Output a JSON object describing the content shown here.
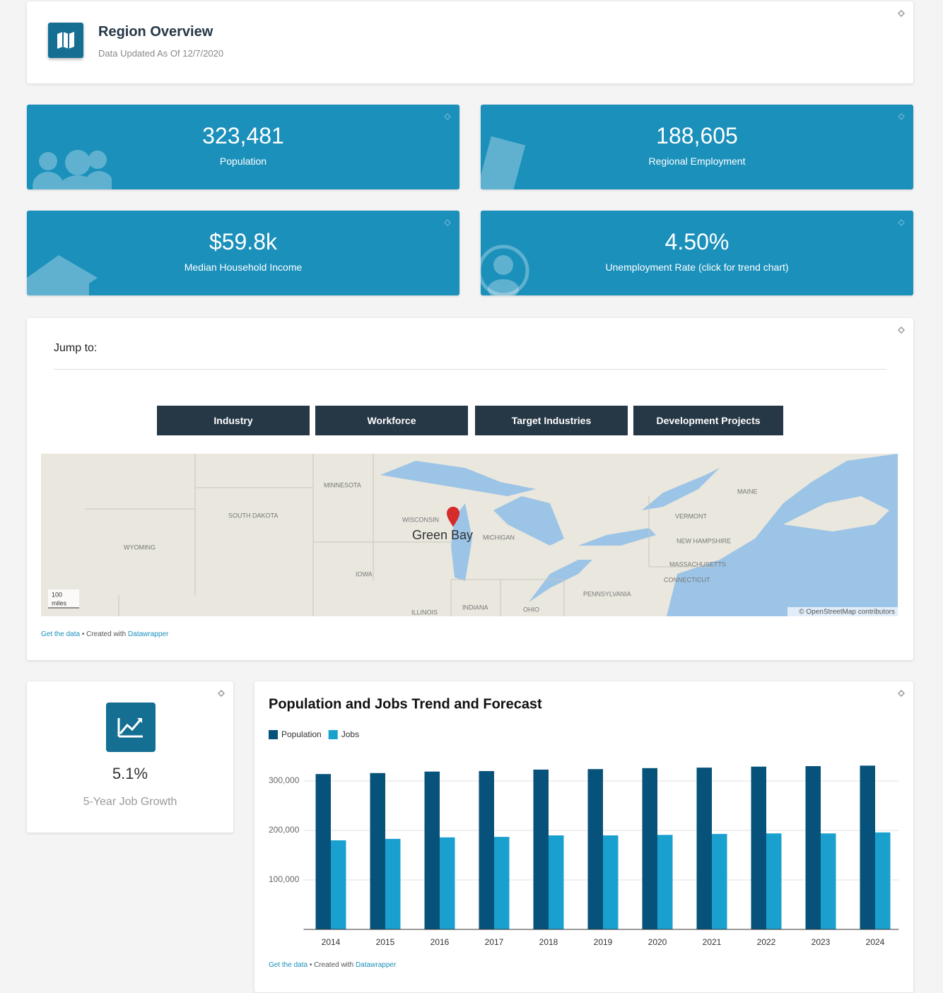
{
  "header": {
    "title": "Region Overview",
    "subtitle": "Data Updated As Of 12/7/2020"
  },
  "stats": [
    {
      "value": "323,481",
      "label": "Population"
    },
    {
      "value": "188,605",
      "label": "Regional Employment"
    },
    {
      "value": "$59.8k",
      "label": "Median Household Income"
    },
    {
      "value": "4.50%",
      "label": "Unemployment Rate (click for trend chart)"
    }
  ],
  "jump": {
    "label": "Jump to:",
    "buttons": [
      "Industry",
      "Workforce",
      "Target Industries",
      "Development Projects"
    ]
  },
  "map": {
    "labels": [
      "MINNESOTA",
      "SOUTH DAKOTA",
      "WYOMING",
      "WISCONSIN",
      "IOWA",
      "MICHIGAN",
      "ILLINOIS",
      "INDIANA",
      "OHIO",
      "PENNSYLVANIA",
      "MAINE",
      "VERMONT",
      "NEW HAMPSHIRE",
      "MASSACHUSETTS",
      "CONNECTICUT"
    ],
    "city": "Green Bay",
    "scale": [
      "100",
      "miles"
    ],
    "attribution": "© OpenStreetMap contributors"
  },
  "footer": {
    "get": "Get the data",
    "created": "• Created with",
    "tool": "Datawrapper"
  },
  "growth": {
    "value": "5.1%",
    "label": "5-Year Job Growth"
  },
  "chart_data": {
    "type": "bar",
    "title": "Population and Jobs Trend and Forecast",
    "categories": [
      "2014",
      "2015",
      "2016",
      "2017",
      "2018",
      "2019",
      "2020",
      "2021",
      "2022",
      "2023",
      "2024"
    ],
    "series": [
      {
        "name": "Population",
        "color": "#07527a",
        "values": [
          314000,
          316000,
          319000,
          320000,
          323000,
          324000,
          326000,
          327000,
          329000,
          330000,
          331000
        ]
      },
      {
        "name": "Jobs",
        "color": "#19a0cf",
        "values": [
          180000,
          183000,
          186000,
          187000,
          190000,
          190000,
          191000,
          193000,
          194000,
          194000,
          196000
        ]
      }
    ],
    "ylim": [
      0,
      350000
    ],
    "yticks": [
      {
        "value": 100000,
        "label": "100,000"
      },
      {
        "value": 200000,
        "label": "200,000"
      },
      {
        "value": 300000,
        "label": "300,000"
      }
    ],
    "grid": true
  }
}
